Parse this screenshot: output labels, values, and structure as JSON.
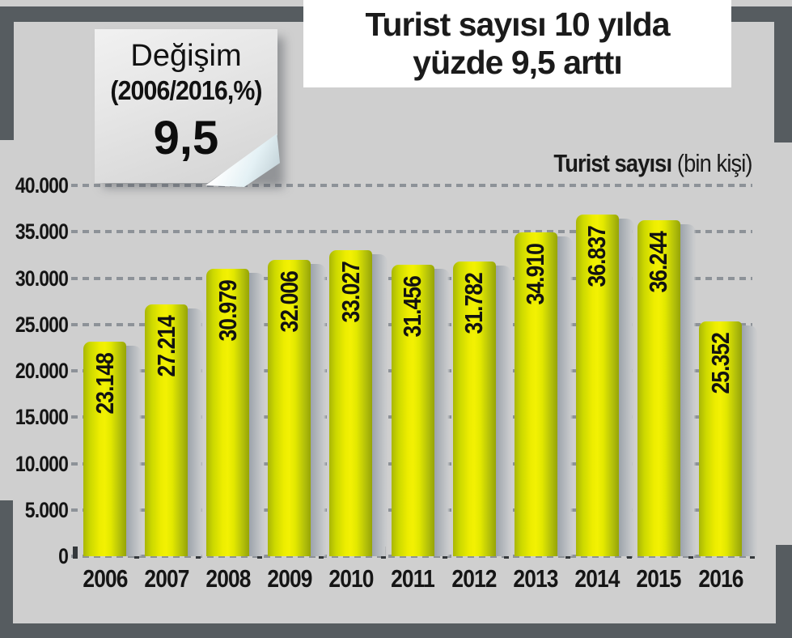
{
  "title": {
    "line1": "Turist sayısı 10 yılda",
    "line2": "yüzde 9,5 arttı"
  },
  "note": {
    "line1": "Değişim",
    "line2": "(2006/2016,%)",
    "value": "9,5"
  },
  "series_header": {
    "bold": "Turist sayısı",
    "normal": " (bin kişi)"
  },
  "chart_data": {
    "type": "bar",
    "title": "Turist sayısı 10 yılda yüzde 9,5 arttı",
    "series_name": "Turist sayısı (bin kişi)",
    "unit": "bin kişi",
    "categories": [
      "2006",
      "2007",
      "2008",
      "2009",
      "2010",
      "2011",
      "2012",
      "2013",
      "2014",
      "2015",
      "2016"
    ],
    "values": [
      23148,
      27214,
      30979,
      32006,
      33027,
      31456,
      31782,
      34910,
      36837,
      36244,
      25352
    ],
    "value_labels": [
      "23.148",
      "27.214",
      "30.979",
      "32.006",
      "33.027",
      "31.456",
      "31.782",
      "34.910",
      "36.837",
      "36.244",
      "25.352"
    ],
    "ylim": [
      0,
      40000
    ],
    "ytick_values": [
      0,
      5000,
      10000,
      15000,
      20000,
      25000,
      30000,
      35000,
      40000
    ],
    "ytick_labels": [
      "0",
      "5.000",
      "10.000",
      "15.000",
      "20.000",
      "25.000",
      "30.000",
      "35.000",
      "40.000"
    ],
    "grid": "dashed-horizontal",
    "annotation": "Değişim (2006/2016,%) 9,5"
  },
  "colors": {
    "background": "#cfcfcf",
    "frame": "#565c60",
    "title_bg": "#ffffff",
    "bar_left": "#a9b607",
    "bar_center": "#f3f103",
    "bar_right": "#96a406",
    "bar_shadow_dark": "#9aa1a9",
    "bar_shadow_light": "#c7c9cb",
    "gridline": "#8d9298",
    "text": "#151515"
  }
}
